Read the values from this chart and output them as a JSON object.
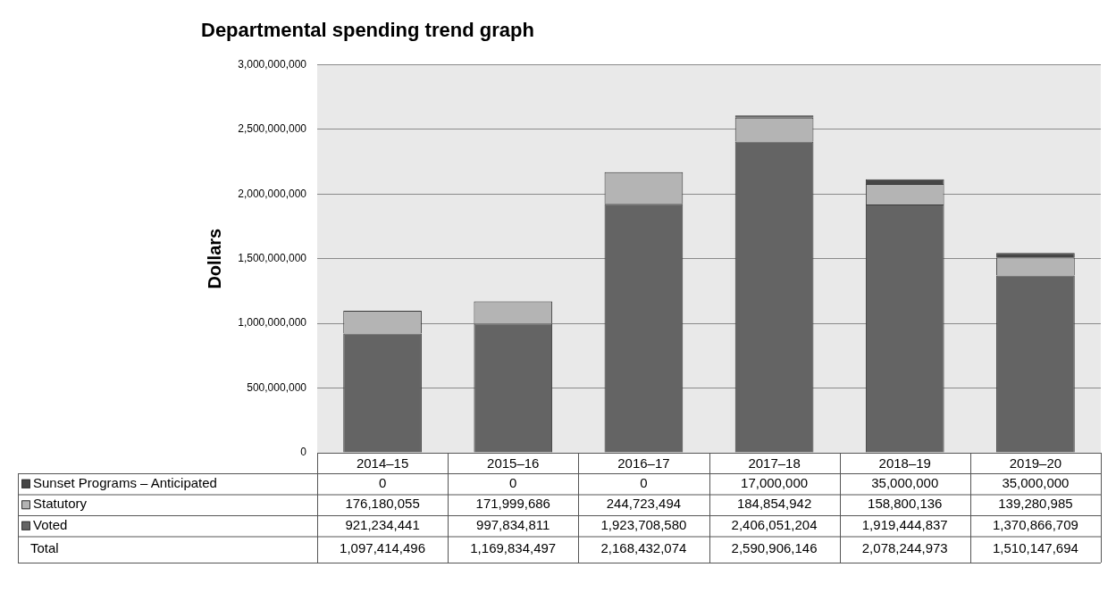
{
  "chart_data": {
    "type": "bar",
    "title": "Departmental spending trend graph",
    "ylabel": "Dollars",
    "categories": [
      "2014–15",
      "2015–16",
      "2016–17",
      "2017–18",
      "2018–19",
      "2019–20"
    ],
    "stacked": true,
    "series": [
      {
        "name": "Voted",
        "color": "#646464",
        "values": [
          921234441,
          997834811,
          1923708580,
          2406051204,
          1919444837,
          1370866709
        ],
        "value_labels": [
          "921,234,441",
          "997,834,811",
          "1,923,708,580",
          "2,406,051,204",
          "1,919,444,837",
          "1,370,866,709"
        ]
      },
      {
        "name": "Statutory",
        "color": "#b4b4b4",
        "values": [
          176180055,
          171999686,
          244723494,
          184854942,
          158800136,
          139280985
        ],
        "value_labels": [
          "176,180,055",
          "171,999,686",
          "244,723,494",
          "184,854,942",
          "158,800,136",
          "139,280,985"
        ]
      },
      {
        "name": "Sunset Programs – Anticipated",
        "color": "#464646",
        "values": [
          0,
          0,
          0,
          17000000,
          35000000,
          35000000
        ],
        "value_labels": [
          "0",
          "0",
          "0",
          "17,000,000",
          "35,000,000",
          "35,000,000"
        ]
      }
    ],
    "annotations": [
      "Total",
      "1,097,414,496",
      "1,169,834,497",
      "2,168,432,074",
      "2,590,906,146",
      "2,078,244,973",
      "1,510,147,694"
    ],
    "ylim": [
      0,
      3000000000
    ],
    "yticks": [
      0,
      {
        "value": 500000000,
        "label": "500,000,000"
      },
      {
        "value": 1000000000,
        "label": "1,000,000,000"
      },
      {
        "value": 1500000000,
        "label": "1,500,000,000"
      },
      {
        "value": 2000000000,
        "label": "2,000,000,000"
      },
      {
        "value": 2500000000,
        "label": "2,500,000,000"
      },
      {
        "value": 3000000000,
        "label": "3,000,000,000"
      }
    ],
    "grid": "y",
    "legend": "bottom"
  }
}
